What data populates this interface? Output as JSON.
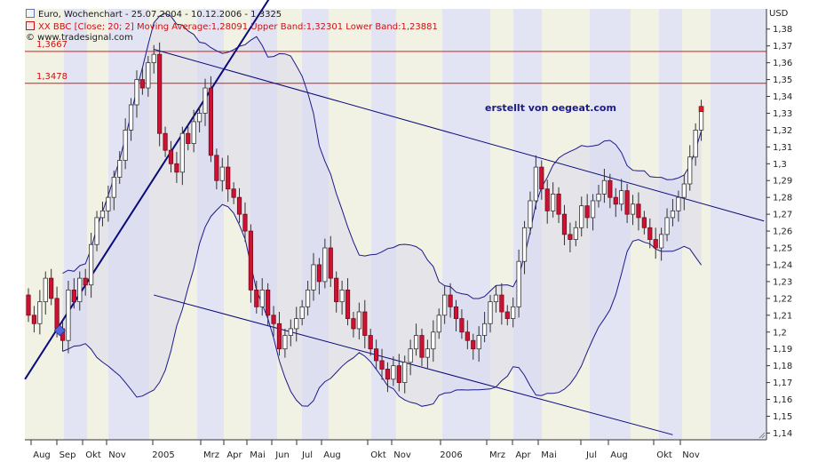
{
  "header": {
    "line1": "Euro, Wochenchart - 25.07.2004 - 10.12.2006 - 1,3325",
    "line2": "XX BBC [Close; 20; 2] Moving Average:1,28091 Upper Band:1,32301 Lower Band:1,23881",
    "line3": "© www.tradesignal.com"
  },
  "currency": "USD",
  "watermark": "erstellt von oegeat.com",
  "colors": {
    "up_candle": "#ffffff",
    "down_candle": "#cc1133",
    "band_line": "#1a1a8a",
    "trend_line": "#0a0a7a",
    "hline": "#e01b1b",
    "band_fill": "#d8d8ec",
    "stripe_light": "#f1f1e4",
    "stripe_blue": "#e2e4f3"
  },
  "chart_data": {
    "type": "candlestick",
    "title": "Euro, Wochenchart - 25.07.2004 - 10.12.2006 - 1,3325",
    "ylabel": "USD",
    "ylim": [
      1.136,
      1.392
    ],
    "y_ticks": [
      "1,38",
      "1,37",
      "1,36",
      "1,35",
      "1,34",
      "1,33",
      "1,32",
      "1,31",
      "1,3",
      "1,29",
      "1,28",
      "1,27",
      "1,26",
      "1,25",
      "1,24",
      "1,23",
      "1,22",
      "1,21",
      "1,2",
      "1,19",
      "1,18",
      "1,17",
      "1,16",
      "1,15",
      "1,14"
    ],
    "x_labels": [
      "Aug",
      "Sep",
      "Okt",
      "Nov",
      "2005",
      "Mrz",
      "Apr",
      "Mai",
      "Jun",
      "Jul",
      "Aug",
      "Okt",
      "Nov",
      "2006",
      "Mrz",
      "Apr",
      "Mai",
      "Jul",
      "Aug",
      "Okt",
      "Nov"
    ],
    "horizontal_lines": [
      {
        "label": "1,3667",
        "value": 1.3667
      },
      {
        "label": "1,3478",
        "value": 1.3478
      }
    ],
    "indicator": {
      "name": "XX BBC [Close; 20; 2]",
      "moving_average": 1.28091,
      "upper_band": 1.32301,
      "lower_band": 1.23881
    },
    "last_close": 1.3325,
    "close": [
      1.21,
      1.205,
      1.218,
      1.232,
      1.22,
      1.202,
      1.195,
      1.225,
      1.218,
      1.232,
      1.228,
      1.252,
      1.268,
      1.272,
      1.28,
      1.292,
      1.302,
      1.32,
      1.335,
      1.35,
      1.345,
      1.36,
      1.365,
      1.318,
      1.308,
      1.3,
      1.295,
      1.318,
      1.312,
      1.325,
      1.33,
      1.345,
      1.305,
      1.29,
      1.298,
      1.285,
      1.28,
      1.27,
      1.26,
      1.225,
      1.215,
      1.225,
      1.21,
      1.205,
      1.19,
      1.198,
      1.202,
      1.208,
      1.215,
      1.225,
      1.24,
      1.23,
      1.25,
      1.232,
      1.218,
      1.225,
      1.208,
      1.202,
      1.212,
      1.198,
      1.19,
      1.183,
      1.178,
      1.172,
      1.18,
      1.17,
      1.182,
      1.19,
      1.198,
      1.185,
      1.19,
      1.2,
      1.21,
      1.222,
      1.215,
      1.208,
      1.2,
      1.195,
      1.19,
      1.198,
      1.205,
      1.218,
      1.222,
      1.212,
      1.208,
      1.215,
      1.242,
      1.262,
      1.278,
      1.298,
      1.285,
      1.272,
      1.282,
      1.27,
      1.258,
      1.255,
      1.262,
      1.275,
      1.268,
      1.278,
      1.282,
      1.29,
      1.28,
      1.276,
      1.284,
      1.27,
      1.276,
      1.268,
      1.262,
      1.255,
      1.25,
      1.258,
      1.268,
      1.272,
      1.28,
      1.288,
      1.304,
      1.32,
      1.3325
    ]
  }
}
